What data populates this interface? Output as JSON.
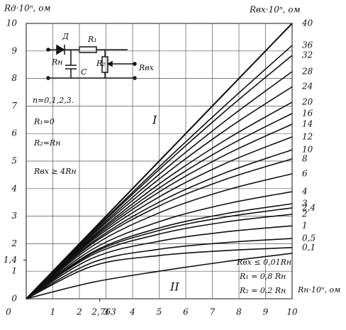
{
  "chart_data": {
    "type": "line",
    "ylabel": "Rд·10ⁿ, ом",
    "y2label": "Rвх·10ⁿ, ом",
    "xlabel": "Rн·10ⁿ, ом",
    "x": [
      0,
      2.5,
      5,
      7.5,
      10
    ],
    "xlim": [
      0,
      10
    ],
    "ylim": [
      0,
      10
    ],
    "xticks": [
      0,
      1,
      2,
      {
        "value": 2.763,
        "label": "2,763"
      },
      3,
      4,
      5,
      6,
      7,
      8,
      9,
      10
    ],
    "yticks": [
      0,
      1,
      {
        "value": 1.4,
        "label": "1,4"
      },
      2,
      3,
      4,
      5,
      6,
      7,
      8,
      9,
      10
    ],
    "grid": true,
    "color": "#111111",
    "series": [
      {
        "name": "40",
        "values": [
          0,
          2.5,
          5,
          7.5,
          10
        ]
      },
      {
        "name": "36",
        "values": [
          0,
          2.45,
          4.79,
          7.04,
          9.2
        ]
      },
      {
        "name": "32",
        "values": [
          0,
          2.42,
          4.69,
          6.83,
          8.84
        ]
      },
      {
        "name": "28",
        "values": [
          0,
          2.37,
          4.52,
          6.47,
          8.25
        ]
      },
      {
        "name": "24",
        "values": [
          0,
          2.33,
          4.35,
          6.13,
          7.7
        ]
      },
      {
        "name": "20",
        "values": [
          0,
          2.27,
          4.17,
          5.77,
          7.14
        ]
      },
      {
        "name": "16",
        "values": [
          0,
          2.23,
          4.02,
          5.5,
          6.73
        ]
      },
      {
        "name": "14",
        "values": [
          0,
          2.18,
          3.88,
          5.23,
          6.34
        ]
      },
      {
        "name": "12",
        "values": [
          0,
          2.13,
          3.7,
          4.92,
          5.88
        ]
      },
      {
        "name": "10",
        "values": [
          0,
          2.06,
          3.51,
          4.58,
          5.41
        ]
      },
      {
        "name": "8",
        "values": [
          0,
          2.01,
          3.37,
          4.34,
          5.08
        ]
      },
      {
        "name": "6",
        "values": [
          0,
          1.92,
          3.12,
          3.94,
          4.54
        ]
      },
      {
        "name": "4",
        "values": [
          0,
          1.8,
          2.8,
          3.44,
          3.89
        ]
      },
      {
        "name": "3",
        "values": [
          0,
          1.7,
          2.57,
          3.09,
          3.45
        ]
      },
      {
        "name": "2,4",
        "values": [
          0,
          1.66,
          2.48,
          2.97,
          3.3
        ]
      },
      {
        "name": "2",
        "values": [
          0,
          1.6,
          2.35,
          2.79,
          3.07
        ]
      },
      {
        "name": "1",
        "values": [
          0,
          1.48,
          2.09,
          2.43,
          2.65
        ]
      },
      {
        "name": "0,5",
        "values": [
          0,
          1.32,
          1.8,
          2.04,
          2.19
        ]
      },
      {
        "name": "0,1",
        "values": [
          0,
          1.19,
          1.57,
          1.75,
          1.86
        ]
      },
      {
        "values": [
          0,
          0.6,
          1.0,
          1.35,
          1.65
        ]
      }
    ],
    "annotations": [
      "Д",
      "R₁",
      "R₂",
      "Rн",
      "C",
      "Rвх",
      "n=0,1,2,3.",
      "R₁=0",
      "R₂=Rн",
      "Rвх ≥ 4Rн",
      "I",
      "II",
      "Rвх ≤ 0,01Rн",
      "R₁ = 0,8 Rн",
      "R₂ = 0,2 Rн"
    ]
  }
}
